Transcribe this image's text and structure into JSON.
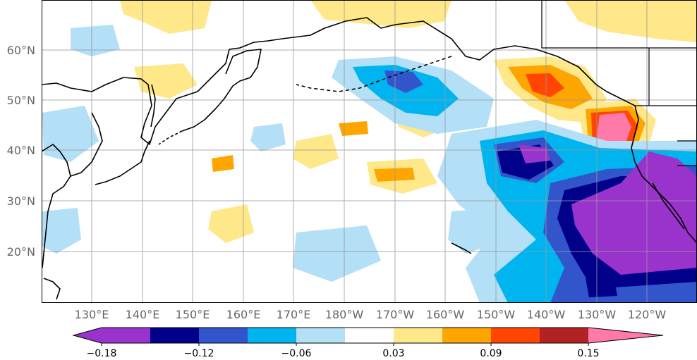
{
  "map": {
    "lon_labels": [
      "130°E",
      "140°E",
      "150°E",
      "160°E",
      "170°E",
      "180°W",
      "170°W",
      "160°W",
      "150°W",
      "140°W",
      "130°W",
      "120°W"
    ],
    "lat_labels": [
      "60°N",
      "50°N",
      "40°N",
      "30°N",
      "20°N"
    ]
  },
  "colorbar": {
    "colors": [
      "#9933cc",
      "#00008b",
      "#3355cc",
      "#00b4f0",
      "#b3dff7",
      "#ffffff",
      "#ffe88a",
      "#ffa500",
      "#ff4500",
      "#b22222",
      "#ff7aa8"
    ],
    "tick_labels": [
      "−0.18",
      "−0.12",
      "−0.06",
      "0.03",
      "0.09",
      "0.15"
    ]
  }
}
